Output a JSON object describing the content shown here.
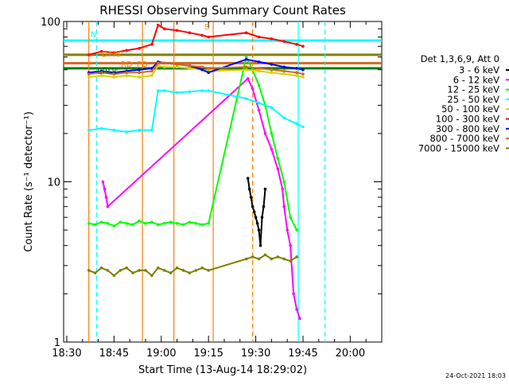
{
  "chart_data": {
    "type": "line",
    "title": "RHESSI Observing Summary Count Rates",
    "xlabel": "Start Time (13-Aug-14 18:29:02)",
    "ylabel": "Count Rate (s⁻¹ detector⁻¹)",
    "y_scale": "log",
    "ylim": [
      1,
      100
    ],
    "xlim_minutes_after_1829": [
      0,
      101
    ],
    "x_ticks": [
      {
        "label": "18:30",
        "t": 1
      },
      {
        "label": "18:45",
        "t": 16
      },
      {
        "label": "19:00",
        "t": 31
      },
      {
        "label": "19:15",
        "t": 46
      },
      {
        "label": "19:30",
        "t": 61
      },
      {
        "label": "19:45",
        "t": 76
      },
      {
        "label": "20:00",
        "t": 91
      }
    ],
    "y_ticks": [
      {
        "label": "1",
        "v": 1
      },
      {
        "label": "10",
        "v": 10
      },
      {
        "label": "100",
        "v": 100
      }
    ],
    "legend_title": "Det 1,3,6,9, Att 0",
    "legend_position": "right",
    "series": [
      {
        "name": "3 - 6 keV",
        "color": "#000000",
        "x": [
          58.5,
          59,
          59.5,
          60,
          60.5,
          61,
          61.5,
          62,
          62.5,
          63,
          63.5,
          64
        ],
        "y": [
          10.5,
          9,
          8,
          7,
          6.5,
          6,
          5.5,
          5,
          4,
          6,
          7,
          9
        ]
      },
      {
        "name": "6 - 12 keV",
        "color": "#ff00ff",
        "x": [
          12.5,
          13,
          13.5,
          14,
          58.5,
          60,
          62,
          64,
          66,
          68,
          69.5,
          70,
          71,
          72,
          73,
          74,
          75
        ],
        "y": [
          10,
          9,
          8,
          7,
          44,
          38,
          28,
          20,
          16,
          12,
          9,
          7,
          5,
          4,
          2,
          1.6,
          1.4
        ]
      },
      {
        "name": "12 - 25 keV",
        "color": "#00ff00",
        "x": [
          8,
          10,
          12,
          14,
          16,
          18,
          20,
          22,
          24,
          26,
          28,
          30,
          32,
          34,
          36,
          38,
          40,
          42,
          44,
          46,
          58,
          60,
          62,
          64,
          66,
          68,
          70,
          72,
          74
        ],
        "y": [
          5.5,
          5.4,
          5.6,
          5.5,
          5.3,
          5.6,
          5.5,
          5.4,
          5.7,
          5.5,
          5.6,
          5.4,
          5.5,
          5.6,
          5.5,
          5.4,
          5.6,
          5.5,
          5.4,
          5.5,
          60,
          50,
          40,
          30,
          20,
          14,
          10,
          6,
          5
        ]
      },
      {
        "name": "25 - 50 keV",
        "color": "#00ffff",
        "x": [
          8,
          12,
          16,
          20,
          24,
          28,
          30,
          32,
          36,
          40,
          44,
          46,
          58,
          62,
          66,
          70,
          74,
          76
        ],
        "y": [
          21,
          21.5,
          21,
          20.5,
          21,
          21,
          37,
          37,
          36,
          36.5,
          37,
          37,
          33,
          31,
          29,
          25,
          23,
          22
        ]
      },
      {
        "name": "50 - 100 keV",
        "color": "#d4d400",
        "x": [
          8,
          12,
          16,
          20,
          24,
          28,
          30,
          32,
          36,
          40,
          44,
          46,
          58,
          62,
          66,
          70,
          74,
          76
        ],
        "y": [
          45,
          46,
          45,
          46,
          45,
          46,
          53,
          52,
          52,
          51,
          50,
          49,
          50,
          49,
          48,
          47,
          46,
          45
        ]
      },
      {
        "name": "100 - 300 keV",
        "color": "#ff0000",
        "x": [
          8,
          12,
          16,
          20,
          24,
          28,
          30,
          32,
          36,
          40,
          44,
          46,
          58,
          62,
          66,
          70,
          74,
          76
        ],
        "y": [
          62,
          65,
          64,
          66,
          68,
          72,
          95,
          90,
          88,
          85,
          82,
          80,
          85,
          80,
          78,
          75,
          72,
          70
        ]
      },
      {
        "name": "300 - 800 keV",
        "color": "#0000ff",
        "x": [
          8,
          12,
          16,
          20,
          24,
          28,
          30,
          32,
          36,
          40,
          44,
          46,
          58,
          62,
          66,
          70,
          74,
          76
        ],
        "y": [
          48,
          49,
          48,
          49,
          50,
          51,
          56,
          55,
          54,
          53,
          50,
          48,
          58,
          56,
          54,
          52,
          51,
          50
        ]
      },
      {
        "name": "800 - 7000 keV",
        "color": "#d2691e",
        "x": [
          8,
          12,
          16,
          20,
          24,
          28,
          30,
          32,
          36,
          40,
          44,
          46,
          58,
          62,
          66,
          70,
          74,
          76
        ],
        "y": [
          47,
          48,
          47,
          48,
          48,
          49,
          55,
          55,
          54,
          53,
          52,
          51,
          52,
          51,
          50,
          49,
          48,
          47
        ]
      },
      {
        "name": "7000 - 15000 keV",
        "color": "#808000",
        "x": [
          8,
          10,
          12,
          14,
          16,
          18,
          20,
          22,
          24,
          26,
          28,
          30,
          32,
          34,
          36,
          38,
          40,
          42,
          44,
          46,
          58,
          60,
          62,
          64,
          66,
          68,
          70,
          72,
          74
        ],
        "y": [
          2.8,
          2.7,
          2.9,
          2.8,
          2.6,
          2.8,
          2.9,
          2.7,
          2.8,
          2.8,
          2.6,
          2.9,
          2.8,
          2.7,
          2.9,
          2.8,
          2.7,
          2.8,
          2.9,
          2.8,
          3.3,
          3.4,
          3.3,
          3.5,
          3.3,
          3.4,
          3.3,
          3.2,
          3.4
        ]
      }
    ],
    "horizontal_lines": [
      {
        "value": 76,
        "color": "#00ffff"
      },
      {
        "value": 62,
        "color": "#808000"
      },
      {
        "value": 55,
        "color": "#d2691e"
      },
      {
        "value": 51,
        "color": "#008000"
      }
    ],
    "vertical_markers": [
      {
        "t": 8,
        "color": "#ff8000",
        "style": "solid"
      },
      {
        "t": 10.5,
        "color": "#00ffff",
        "style": "dashed"
      },
      {
        "t": 25,
        "color": "#ff8000",
        "style": "solid"
      },
      {
        "t": 35,
        "color": "#ff8000",
        "style": "solid"
      },
      {
        "t": 47.5,
        "color": "#ff8000",
        "style": "solid"
      },
      {
        "t": 60,
        "color": "#ff8000",
        "style": "dashed"
      },
      {
        "t": 74.5,
        "color": "#00ffff",
        "style": "solid"
      },
      {
        "t": 83,
        "color": "#00ffff",
        "style": "dashed"
      }
    ],
    "annotations": [
      {
        "text": "N",
        "t": 9.5,
        "v": 80,
        "color": "#00ffff"
      },
      {
        "text": "S",
        "t": 45.5,
        "v": 89,
        "color": "#ff8000"
      },
      {
        "text": "D",
        "t": 13,
        "v": 60,
        "color": "#ff8000"
      },
      {
        "text": "F",
        "t": 15,
        "v": 60,
        "color": "#ff8000"
      },
      {
        "text": "R",
        "t": 16.5,
        "v": 60,
        "color": "#ff8000"
      },
      {
        "text": "P",
        "t": 18,
        "v": 60,
        "color": "#ff8000"
      },
      {
        "text": "RD",
        "t": 20,
        "v": 52,
        "color": "#ff8000"
      },
      {
        "text": "PD",
        "t": 25,
        "v": 52,
        "color": "#ff8000"
      },
      {
        "text": "SRDs",
        "t": 14,
        "v": 47,
        "color": "#008000"
      }
    ],
    "footer_date": "24-Oct-2021 18:03"
  }
}
